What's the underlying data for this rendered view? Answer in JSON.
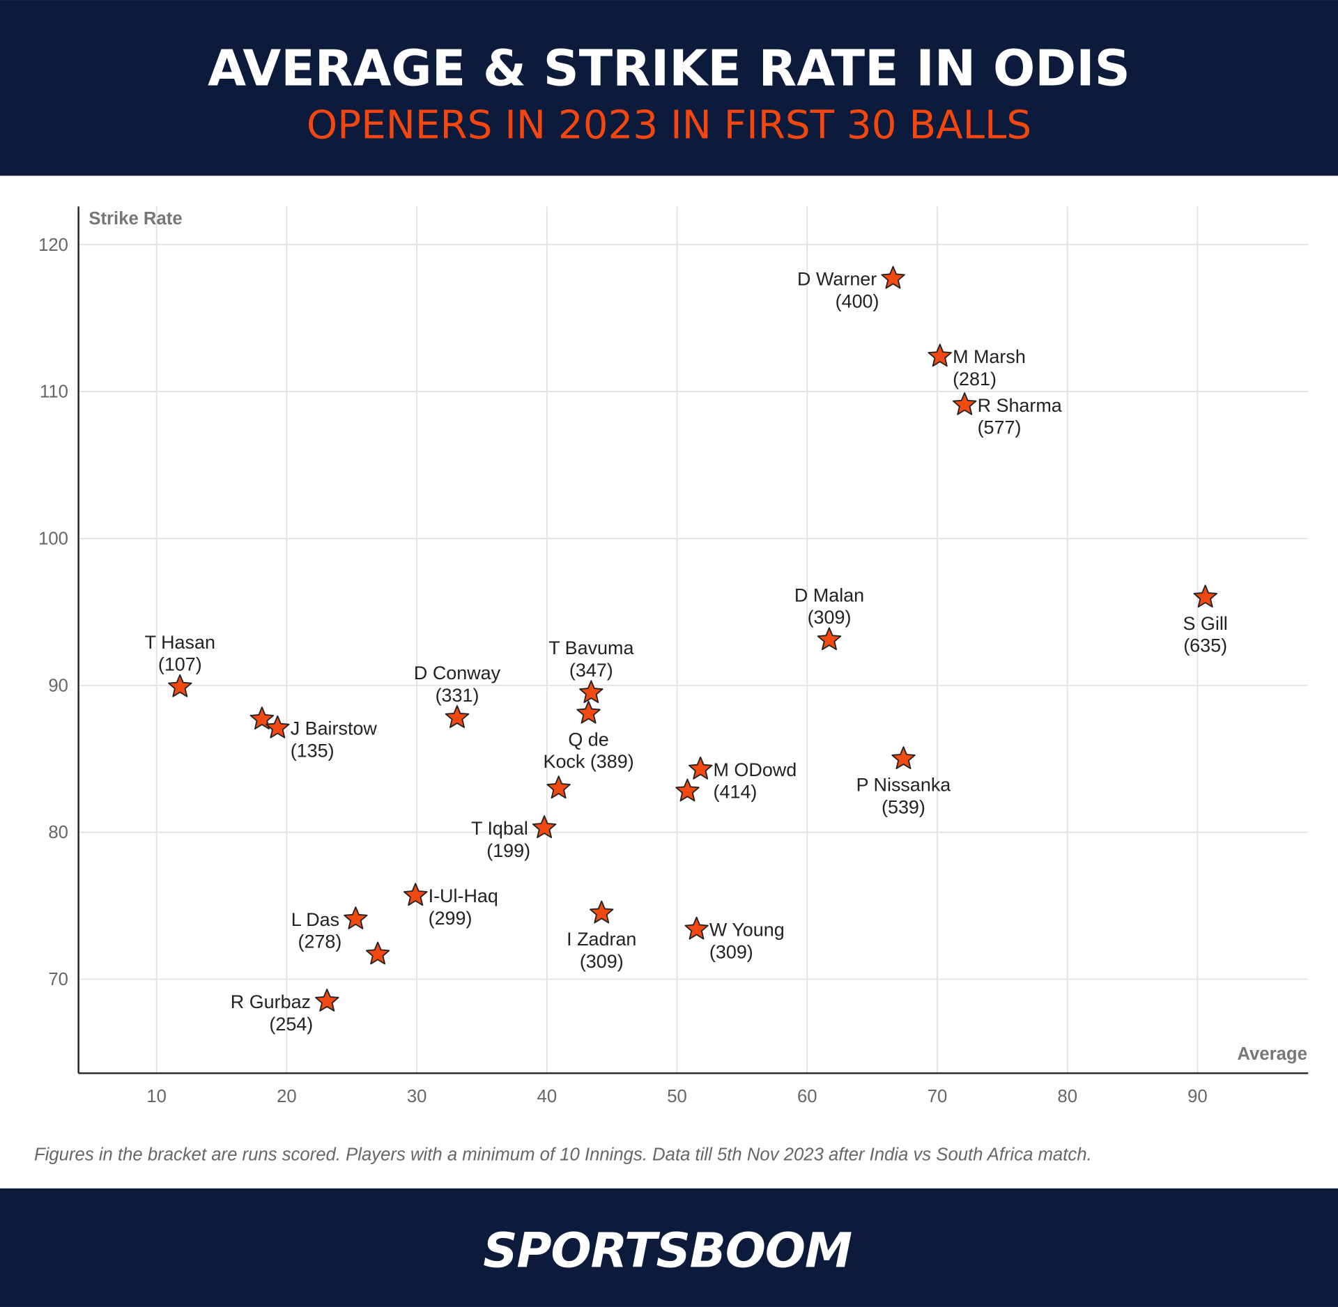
{
  "header": {
    "title": "AVERAGE & STRIKE RATE IN ODIS",
    "subtitle": "OPENERS IN 2023 IN FIRST 30 BALLS"
  },
  "colors": {
    "navy": "#0c1a3c",
    "accent": "#f4470f",
    "marker": "#f04a12"
  },
  "chart_data": {
    "type": "scatter",
    "xlabel": "Average",
    "ylabel": "Strike Rate",
    "xlim": [
      4,
      98.5
    ],
    "ylim": [
      63.6,
      122.6
    ],
    "xticks": [
      "10",
      "20",
      "30",
      "40",
      "50",
      "60",
      "70",
      "80",
      "90"
    ],
    "yticks": [
      "70",
      "80",
      "90",
      "100",
      "110",
      "120"
    ],
    "grid": true,
    "marker": "star",
    "points": [
      {
        "name": "D Warner",
        "runs": "400",
        "x": 66.6,
        "y": 117.7,
        "label_pos": "left"
      },
      {
        "name": "M Marsh",
        "runs": "281",
        "x": 70.2,
        "y": 112.4,
        "label_pos": "right"
      },
      {
        "name": "R Sharma",
        "runs": "577",
        "x": 72.1,
        "y": 109.1,
        "label_pos": "right"
      },
      {
        "name": "S Gill",
        "runs": "635",
        "x": 90.6,
        "y": 96.0,
        "label_pos": "below"
      },
      {
        "name": "D Malan",
        "runs": "309",
        "x": 61.7,
        "y": 93.1,
        "label_pos": "above"
      },
      {
        "name": "T Hasan",
        "runs": "107",
        "x": 11.8,
        "y": 89.9,
        "label_pos": "above"
      },
      {
        "name": "",
        "runs": "",
        "x": 18.1,
        "y": 87.7,
        "label_pos": "none"
      },
      {
        "name": "J Bairstow",
        "runs": "135",
        "x": 19.3,
        "y": 87.1,
        "label_pos": "right"
      },
      {
        "name": "D Conway",
        "runs": "331",
        "x": 33.1,
        "y": 87.8,
        "label_pos": "above"
      },
      {
        "name": "T Bavuma",
        "runs": "347",
        "x": 43.4,
        "y": 89.5,
        "label_pos": "above"
      },
      {
        "name": "Q de Kock",
        "runs": "389",
        "x": 43.2,
        "y": 88.1,
        "label_pos": "below-wrap"
      },
      {
        "name": "",
        "runs": "",
        "x": 40.9,
        "y": 83.0,
        "label_pos": "none"
      },
      {
        "name": "M ODowd",
        "runs": "414",
        "x": 51.8,
        "y": 84.3,
        "label_pos": "right"
      },
      {
        "name": "",
        "runs": "",
        "x": 50.8,
        "y": 82.8,
        "label_pos": "none"
      },
      {
        "name": "P Nissanka",
        "runs": "539",
        "x": 67.4,
        "y": 85.0,
        "label_pos": "below"
      },
      {
        "name": "T Iqbal",
        "runs": "199",
        "x": 39.8,
        "y": 80.3,
        "label_pos": "left"
      },
      {
        "name": "I-Ul-Haq",
        "runs": "299",
        "x": 29.9,
        "y": 75.7,
        "label_pos": "right"
      },
      {
        "name": "L Das",
        "runs": "278",
        "x": 25.3,
        "y": 74.1,
        "label_pos": "left"
      },
      {
        "name": "",
        "runs": "",
        "x": 27.0,
        "y": 71.7,
        "label_pos": "none"
      },
      {
        "name": "I Zadran",
        "runs": "309",
        "x": 44.2,
        "y": 74.5,
        "label_pos": "below"
      },
      {
        "name": "W Young",
        "runs": "309",
        "x": 51.5,
        "y": 73.4,
        "label_pos": "right"
      },
      {
        "name": "R Gurbaz",
        "runs": "254",
        "x": 23.1,
        "y": 68.5,
        "label_pos": "left"
      }
    ]
  },
  "footer": {
    "note": "Figures in the bracket are runs scored. Players with a minimum of 10 Innings. Data till 5th Nov 2023 after India vs South Africa match.",
    "logo_text": "SPORTSBOOM"
  }
}
